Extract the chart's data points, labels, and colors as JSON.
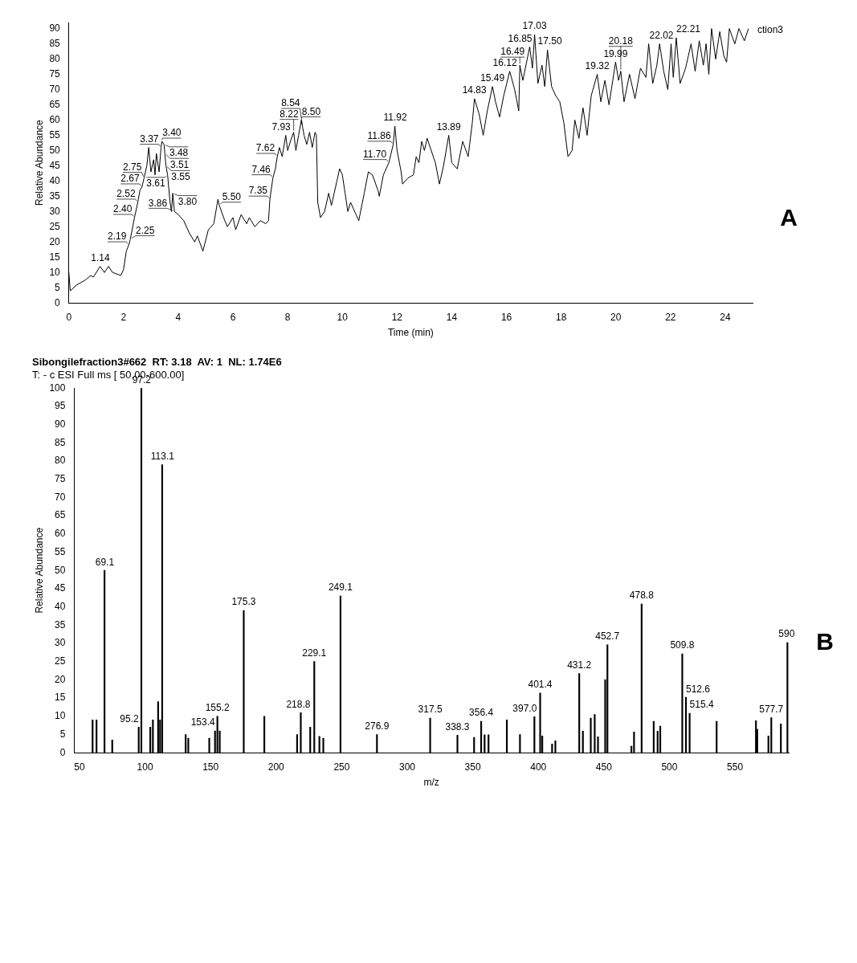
{
  "chart_data": [
    {
      "type": "line",
      "xlabel": "Time (min)",
      "ylabel": "Relative Abundance",
      "color": "#000000",
      "marker": "none",
      "grid": false,
      "legend": false,
      "xlim": [
        0,
        25
      ],
      "xticks": [
        0,
        2,
        4,
        6,
        8,
        10,
        12,
        14,
        16,
        18,
        20,
        22,
        24
      ],
      "ylim": [
        0,
        92
      ],
      "yticks": [
        0,
        5,
        10,
        15,
        20,
        25,
        30,
        35,
        40,
        45,
        50,
        55,
        60,
        65,
        70,
        75,
        80,
        85,
        90
      ],
      "x": [
        0,
        0.05,
        0.3,
        0.6,
        0.8,
        0.9,
        1.14,
        1.3,
        1.45,
        1.6,
        1.9,
        2.0,
        2.1,
        2.19,
        2.25,
        2.4,
        2.52,
        2.6,
        2.67,
        2.75,
        2.85,
        2.92,
        3.0,
        3.1,
        3.15,
        3.2,
        3.3,
        3.37,
        3.4,
        3.48,
        3.51,
        3.55,
        3.61,
        3.7,
        3.75,
        3.8,
        3.86,
        4.0,
        4.2,
        4.4,
        4.6,
        4.7,
        4.9,
        5.1,
        5.3,
        5.45,
        5.5,
        5.7,
        5.8,
        6.0,
        6.1,
        6.3,
        6.5,
        6.6,
        6.8,
        7.0,
        7.2,
        7.3,
        7.35,
        7.46,
        7.55,
        7.62,
        7.7,
        7.8,
        7.93,
        8.0,
        8.1,
        8.22,
        8.3,
        8.4,
        8.5,
        8.54,
        8.6,
        8.7,
        8.8,
        8.9,
        9.0,
        9.05,
        9.1,
        9.2,
        9.35,
        9.5,
        9.6,
        9.8,
        9.9,
        10.0,
        10.1,
        10.2,
        10.3,
        10.5,
        10.6,
        10.8,
        10.95,
        11.1,
        11.3,
        11.35,
        11.5,
        11.7,
        11.86,
        11.92,
        12.0,
        12.15,
        12.2,
        12.4,
        12.6,
        12.7,
        12.8,
        12.9,
        13.0,
        13.1,
        13.4,
        13.55,
        13.7,
        13.89,
        14.0,
        14.2,
        14.4,
        14.6,
        14.75,
        14.83,
        15.0,
        15.15,
        15.3,
        15.49,
        15.6,
        15.75,
        15.9,
        16.12,
        16.3,
        16.45,
        16.49,
        16.6,
        16.85,
        16.95,
        17.03,
        17.15,
        17.3,
        17.4,
        17.5,
        17.65,
        17.8,
        17.95,
        18.1,
        18.25,
        18.4,
        18.5,
        18.65,
        18.8,
        18.95,
        19.1,
        19.32,
        19.45,
        19.6,
        19.75,
        19.99,
        20.1,
        20.18,
        20.3,
        20.5,
        20.7,
        20.9,
        21.1,
        21.2,
        21.35,
        21.5,
        21.6,
        21.75,
        21.9,
        22.02,
        22.1,
        22.21,
        22.35,
        22.55,
        22.75,
        22.9,
        23.05,
        23.2,
        23.3,
        23.4,
        23.5,
        23.65,
        23.8,
        23.95,
        24.05,
        24.15,
        24.35,
        24.5,
        24.7,
        24.85
      ],
      "values": [
        10,
        4,
        6,
        7.5,
        9,
        8.5,
        12,
        10,
        12,
        10,
        9,
        11,
        17,
        19,
        21,
        28,
        33,
        37,
        38,
        41,
        45,
        51,
        43,
        47,
        42,
        49,
        43,
        51,
        53,
        52,
        49,
        45,
        42,
        33,
        30,
        36,
        30,
        29,
        27,
        23,
        20,
        22,
        17,
        24,
        26,
        34,
        32,
        27,
        25,
        28,
        24,
        29,
        26,
        28,
        25,
        27,
        26,
        27,
        34,
        41,
        44,
        48,
        51,
        48,
        55,
        50,
        53,
        56,
        50,
        55,
        60,
        58,
        55,
        52,
        56,
        51,
        56,
        55,
        33,
        28,
        30,
        36,
        32,
        40,
        44,
        42,
        36,
        30,
        33,
        29,
        27,
        36,
        43,
        42,
        37,
        35,
        42,
        46,
        52,
        58,
        50,
        43,
        39,
        41,
        42,
        48,
        46,
        53,
        50,
        54,
        46,
        39,
        45,
        55,
        46,
        44,
        53,
        48,
        59,
        67,
        62,
        55,
        63,
        71,
        66,
        61,
        68,
        76,
        70,
        63,
        78,
        73,
        84,
        77,
        88,
        72,
        78,
        71,
        83,
        71,
        68,
        66,
        59,
        48,
        50,
        60,
        54,
        64,
        55,
        68,
        75,
        66,
        73,
        65,
        79,
        73,
        76,
        66,
        75,
        67,
        77,
        74,
        85,
        72,
        78,
        85,
        76,
        70,
        85,
        74,
        87,
        72,
        77,
        85,
        76,
        86,
        78,
        85,
        75,
        90,
        80,
        89,
        81,
        79,
        90,
        85,
        90,
        86,
        90
      ],
      "annotations": [
        {
          "text": "1.14",
          "x": 1.14,
          "y": 12
        },
        {
          "text": "2.19",
          "x": 2.19,
          "y": 19
        },
        {
          "text": "2.25",
          "x": 2.25,
          "y": 21
        },
        {
          "text": "2.40",
          "x": 2.4,
          "y": 28
        },
        {
          "text": "2.52",
          "x": 2.52,
          "y": 33
        },
        {
          "text": "2.67",
          "x": 2.67,
          "y": 38
        },
        {
          "text": "2.75",
          "x": 2.75,
          "y": 41
        },
        {
          "text": "3.37",
          "x": 3.37,
          "y": 51
        },
        {
          "text": "3.40",
          "x": 3.4,
          "y": 53
        },
        {
          "text": "3.48",
          "x": 3.48,
          "y": 52
        },
        {
          "text": "3.51",
          "x": 3.51,
          "y": 49
        },
        {
          "text": "3.55",
          "x": 3.55,
          "y": 45
        },
        {
          "text": "3.61",
          "x": 3.61,
          "y": 42
        },
        {
          "text": "3.80",
          "x": 3.8,
          "y": 36
        },
        {
          "text": "3.86",
          "x": 3.86,
          "y": 30
        },
        {
          "text": "5.50",
          "x": 5.5,
          "y": 32
        },
        {
          "text": "7.35",
          "x": 7.35,
          "y": 34
        },
        {
          "text": "7.46",
          "x": 7.46,
          "y": 41
        },
        {
          "text": "7.62",
          "x": 7.62,
          "y": 48
        },
        {
          "text": "7.93",
          "x": 7.93,
          "y": 55
        },
        {
          "text": "8.22",
          "x": 8.22,
          "y": 56
        },
        {
          "text": "8.50",
          "x": 8.5,
          "y": 60
        },
        {
          "text": "8.54",
          "x": 8.54,
          "y": 58
        },
        {
          "text": "11.70",
          "x": 11.7,
          "y": 46
        },
        {
          "text": "11.86",
          "x": 11.86,
          "y": 52
        },
        {
          "text": "11.92",
          "x": 11.92,
          "y": 58
        },
        {
          "text": "13.89",
          "x": 13.89,
          "y": 55
        },
        {
          "text": "14.83",
          "x": 14.83,
          "y": 67
        },
        {
          "text": "15.49",
          "x": 15.49,
          "y": 71
        },
        {
          "text": "16.12",
          "x": 16.12,
          "y": 76
        },
        {
          "text": "16.49",
          "x": 16.49,
          "y": 78
        },
        {
          "text": "16.85",
          "x": 16.85,
          "y": 84
        },
        {
          "text": "17.03",
          "x": 17.03,
          "y": 88
        },
        {
          "text": "17.50",
          "x": 17.5,
          "y": 83
        },
        {
          "text": "19.32",
          "x": 19.32,
          "y": 75
        },
        {
          "text": "19.99",
          "x": 19.99,
          "y": 79
        },
        {
          "text": "20.18",
          "x": 20.18,
          "y": 76
        },
        {
          "text": "22.02",
          "x": 22.02,
          "y": 85
        },
        {
          "text": "22.21",
          "x": 22.21,
          "y": 87
        },
        "ction3",
        "A"
      ]
    },
    {
      "type": "bar",
      "title": "Sibongilefraction3#662  RT: 3.18  AV: 1  NL: 1.74E6",
      "subtitle": "T: - c ESI Full ms [ 50.00-600.00]",
      "xlabel": "m/z",
      "ylabel": "Relative Abundance",
      "color": "#000000",
      "grid": false,
      "legend": false,
      "xlim": [
        46,
        591
      ],
      "xticks": [
        50,
        100,
        150,
        200,
        250,
        300,
        350,
        400,
        450,
        500,
        550
      ],
      "ylim": [
        0,
        100
      ],
      "yticks": [
        0,
        5,
        10,
        15,
        20,
        25,
        30,
        35,
        40,
        45,
        50,
        55,
        60,
        65,
        70,
        75,
        80,
        85,
        90,
        95,
        100
      ],
      "x": [
        60,
        63,
        69.1,
        75,
        95.2,
        97.2,
        104,
        106,
        110,
        111.5,
        113.1,
        131,
        133,
        149,
        153.4,
        155.2,
        157,
        175.3,
        191,
        216,
        218.8,
        226,
        229.1,
        233,
        236,
        249.1,
        276.9,
        317.5,
        338.3,
        351,
        356.4,
        359,
        362,
        376,
        386,
        397.0,
        401.4,
        403,
        410.5,
        413,
        431.2,
        434,
        440,
        443,
        445.5,
        451,
        452.7,
        471,
        473,
        478.8,
        488,
        491,
        493,
        509.8,
        512.6,
        515.4,
        536,
        566,
        567,
        575.5,
        577.7,
        585,
        590
      ],
      "values": [
        9,
        9,
        50,
        3.5,
        7,
        100,
        7,
        9,
        14,
        9,
        79,
        5,
        4,
        4,
        6,
        10,
        6,
        39,
        10,
        5,
        11,
        7,
        25,
        4.5,
        4,
        43,
        5,
        9.5,
        4.8,
        4.2,
        8.6,
        4.9,
        4.9,
        9,
        5,
        9.9,
        16.4,
        4.6,
        2.4,
        3.3,
        21.7,
        5.9,
        9.5,
        10.5,
        4.4,
        20,
        29.6,
        1.8,
        5.7,
        40.8,
        8.6,
        5.9,
        7.3,
        27.1,
        15.2,
        10.8,
        8.6,
        8.8,
        6.4,
        4.6,
        9.6,
        7.9,
        30.2
      ],
      "annotations": [
        {
          "text": "69.1",
          "x": 69.1,
          "y": 50
        },
        {
          "text": "95.2",
          "x": 95.2,
          "y": 7
        },
        {
          "text": "97.2",
          "x": 97.2,
          "y": 100
        },
        {
          "text": "113.1",
          "x": 113.1,
          "y": 79
        },
        {
          "text": "153.4",
          "x": 153.4,
          "y": 6
        },
        {
          "text": "155.2",
          "x": 155.2,
          "y": 10
        },
        {
          "text": "175.3",
          "x": 175.3,
          "y": 39
        },
        {
          "text": "218.8",
          "x": 218.8,
          "y": 11
        },
        {
          "text": "229.1",
          "x": 229.1,
          "y": 25
        },
        {
          "text": "249.1",
          "x": 249.1,
          "y": 43
        },
        {
          "text": "276.9",
          "x": 276.9,
          "y": 5
        },
        {
          "text": "317.5",
          "x": 317.5,
          "y": 9.5
        },
        {
          "text": "338.3",
          "x": 338.3,
          "y": 4.8
        },
        {
          "text": "356.4",
          "x": 356.4,
          "y": 8.6
        },
        {
          "text": "397.0",
          "x": 397.0,
          "y": 9.9
        },
        {
          "text": "401.4",
          "x": 401.4,
          "y": 16.4
        },
        {
          "text": "431.2",
          "x": 431.2,
          "y": 21.7
        },
        {
          "text": "452.7",
          "x": 452.7,
          "y": 29.6
        },
        {
          "text": "478.8",
          "x": 478.8,
          "y": 40.8
        },
        {
          "text": "509.8",
          "x": 509.8,
          "y": 27.1
        },
        {
          "text": "512.6",
          "x": 512.6,
          "y": 15.2
        },
        {
          "text": "515.4",
          "x": 515.4,
          "y": 10.8
        },
        {
          "text": "577.7",
          "x": 577.7,
          "y": 9.6
        },
        {
          "text": "590",
          "x": 590,
          "y": 30.2
        },
        "B"
      ]
    }
  ]
}
